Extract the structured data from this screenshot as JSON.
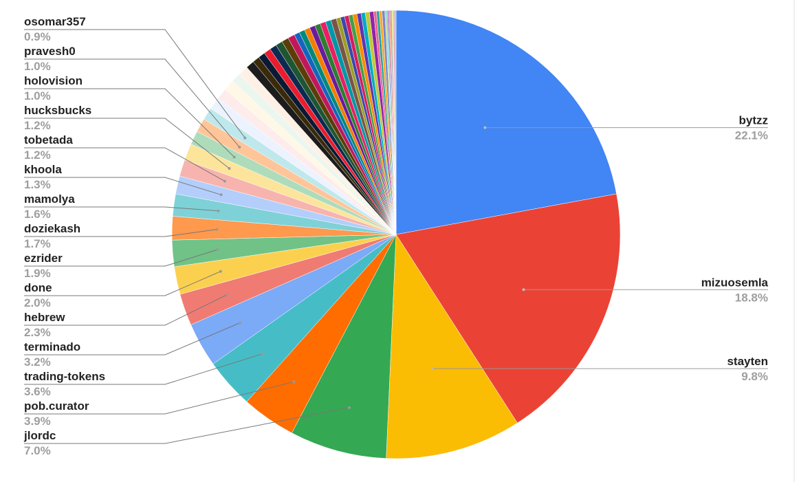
{
  "chart_data": {
    "type": "pie",
    "categories": [
      "bytzz",
      "mizuosemla",
      "stayten",
      "jlordc",
      "pob.curator",
      "trading-tokens",
      "terminado",
      "hebrew",
      "done",
      "ezrider",
      "doziekash",
      "mamolya",
      "khoola",
      "tobetada",
      "hucksbucks",
      "holovision",
      "pravesh0",
      "osomar357",
      null,
      null,
      null,
      null,
      null,
      null,
      null,
      null,
      null,
      null,
      null,
      null,
      null,
      null,
      null,
      null,
      null,
      null,
      null,
      null,
      null,
      null,
      null,
      null,
      null,
      null,
      null,
      null,
      null,
      null,
      null,
      null,
      null,
      null,
      null,
      null,
      null,
      null,
      null,
      null,
      null,
      null
    ],
    "values": [
      22.1,
      18.8,
      9.8,
      7.0,
      3.9,
      3.6,
      3.2,
      2.3,
      2.0,
      1.9,
      1.7,
      1.6,
      1.3,
      1.2,
      1.2,
      1.0,
      1.0,
      0.9,
      0.9,
      0.8,
      0.8,
      0.7,
      0.7,
      0.6,
      0.5,
      0.5,
      0.5,
      0.5,
      0.5,
      0.5,
      0.5,
      0.4,
      0.4,
      0.4,
      0.4,
      0.4,
      0.4,
      0.4,
      0.4,
      0.3,
      0.3,
      0.3,
      0.3,
      0.3,
      0.3,
      0.3,
      0.3,
      0.3,
      0.2,
      0.2,
      0.2,
      0.2,
      0.1,
      0.1,
      0.1,
      0.1,
      0.1,
      0.1,
      0.1,
      0.1
    ],
    "value_labels": [
      "22.1%",
      "18.8%",
      "9.8%",
      "7.0%",
      "3.9%",
      "3.6%",
      "3.2%",
      "2.3%",
      "2.0%",
      "1.9%",
      "1.7%",
      "1.6%",
      "1.3%",
      "1.2%",
      "1.2%",
      "1.0%",
      "1.0%",
      "0.9%",
      null,
      null,
      null,
      null,
      null,
      null,
      null,
      null,
      null,
      null,
      null,
      null,
      null,
      null,
      null,
      null,
      null,
      null,
      null,
      null,
      null,
      null,
      null,
      null,
      null,
      null,
      null,
      null,
      null,
      null,
      null,
      null,
      null,
      null,
      null,
      null,
      null,
      null,
      null,
      null,
      null,
      null
    ],
    "colors": [
      "#4285f4",
      "#ea4335",
      "#fbbc04",
      "#34a853",
      "#ff6d01",
      "#46bdc6",
      "#7baaf7",
      "#f07b72",
      "#fcd04f",
      "#71c287",
      "#ff994d",
      "#7ed1d7",
      "#b3cefb",
      "#f7b4ae",
      "#fde49b",
      "#aedcba",
      "#ffc599",
      "#bee8ec",
      "#ecf3fe",
      "#fdeceb",
      "#fff8e6",
      "#ebf6ee",
      "#fff0e6",
      "#1c1c1c",
      "#3a2a0a",
      "#0b1a33",
      "#ea1c2d",
      "#0d2b52",
      "#1e5631",
      "#5c3d0a",
      "#c2185b",
      "#1565c0",
      "#00897b",
      "#f57c00",
      "#6a1b9a",
      "#2e7d32",
      "#e91e63",
      "#0097a7",
      "#795548",
      "#9e9d24",
      "#3949ab",
      "#d81b60",
      "#43a047",
      "#fb8c00",
      "#5e35b1",
      "#00acc1",
      "#c0ca33",
      "#8e24aa",
      "#f06292",
      "#26a69a",
      "#ffa726",
      "#7986cb",
      "#aed581",
      "#4dd0e1",
      "#ba68c8",
      "#ff8a65",
      "#90a4ae",
      "#dce775",
      "#f48fb1",
      "#80cbc4"
    ]
  }
}
